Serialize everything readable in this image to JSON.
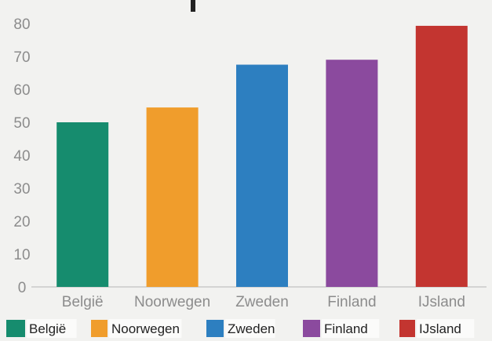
{
  "chart_data": {
    "type": "bar",
    "title": "",
    "xlabel": "",
    "ylabel": "",
    "categories": [
      "België",
      "Noorwegen",
      "Zweden",
      "Finland",
      "IJsland"
    ],
    "values": [
      50,
      54.5,
      67.5,
      69,
      79.3
    ],
    "colors": [
      "#168c6e",
      "#f09d2c",
      "#2d7fc0",
      "#8b4a9e",
      "#c33530"
    ],
    "ylim": [
      0,
      80
    ],
    "yticks": [
      0,
      10,
      20,
      30,
      40,
      50,
      60,
      70,
      80
    ],
    "grid": false,
    "legend": {
      "placement": "bottom",
      "entries": [
        "België",
        "Noorwegen",
        "Zweden",
        "Finland",
        "IJsland"
      ]
    }
  }
}
